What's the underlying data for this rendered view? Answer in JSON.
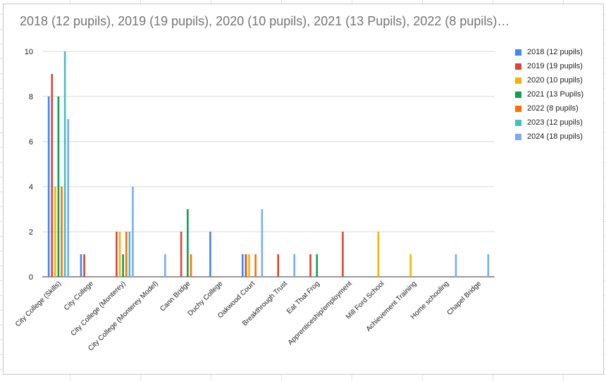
{
  "chart_data": {
    "type": "bar",
    "title": "2018 (12 pupils), 2019 (19 pupils), 2020 (10 pupils), 2021 (13 Pupils), 2022 (8 pupils)…",
    "xlabel": "",
    "ylabel": "",
    "ylim": [
      0,
      10
    ],
    "yticks": [
      "0",
      "2",
      "4",
      "6",
      "8",
      "10"
    ],
    "grid": true,
    "legend_position": "right",
    "categories": [
      "City College (Skills)",
      "City College",
      "City College (Monterey)",
      "City College (Monterey Model)",
      "Cann Bridge",
      "Duchy College",
      "Oakwood Court",
      "Breakthrough Trust",
      "Eat That Frog",
      "Apprenticeship/employment",
      "Mill Ford School",
      "Achievement Training",
      "Home schooling",
      "Chapel Bridge"
    ],
    "series": [
      {
        "name": "2018 (12 pupils)",
        "color": "#4285f4",
        "values": [
          8,
          1,
          0,
          0,
          0,
          2,
          1,
          0,
          0,
          0,
          0,
          0,
          0,
          0
        ]
      },
      {
        "name": "2019 (19 pupils)",
        "color": "#db4437",
        "values": [
          9,
          1,
          2,
          0,
          2,
          0,
          1,
          1,
          1,
          2,
          0,
          0,
          0,
          0
        ]
      },
      {
        "name": "2020 (10 pupils)",
        "color": "#f4b400",
        "values": [
          4,
          0,
          2,
          0,
          0,
          0,
          1,
          0,
          0,
          0,
          2,
          1,
          0,
          0
        ]
      },
      {
        "name": "2021 (13 Pupils)",
        "color": "#0f9d58",
        "values": [
          8,
          0,
          1,
          0,
          3,
          0,
          0,
          0,
          1,
          0,
          0,
          0,
          0,
          0
        ]
      },
      {
        "name": "2022 (8 pupils)",
        "color": "#ff6d01",
        "values": [
          4,
          0,
          2,
          0,
          1,
          0,
          1,
          0,
          0,
          0,
          0,
          0,
          0,
          0
        ]
      },
      {
        "name": "2023 (12 pupils)",
        "color": "#46bdc6",
        "values": [
          10,
          0,
          2,
          0,
          0,
          0,
          0,
          0,
          0,
          0,
          0,
          0,
          0,
          0
        ]
      },
      {
        "name": "2024 (18 pupils)",
        "color": "#7baaf7",
        "values": [
          7,
          0,
          4,
          1,
          0,
          0,
          3,
          1,
          0,
          0,
          0,
          0,
          1,
          1
        ]
      }
    ]
  }
}
